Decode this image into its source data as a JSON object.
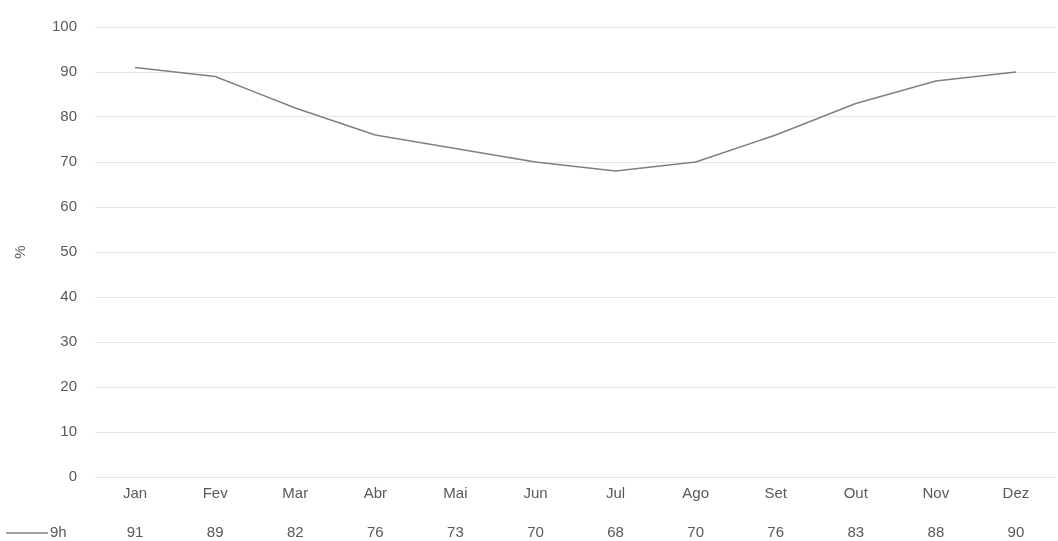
{
  "chart_data": {
    "type": "line",
    "ylabel": "%",
    "categories": [
      "Jan",
      "Fev",
      "Mar",
      "Abr",
      "Mai",
      "Jun",
      "Jul",
      "Ago",
      "Set",
      "Out",
      "Nov",
      "Dez"
    ],
    "series": [
      {
        "name": "9h",
        "color": "#808080",
        "values": [
          91,
          89,
          82,
          76,
          73,
          70,
          68,
          70,
          76,
          83,
          88,
          90
        ]
      }
    ],
    "ylim": [
      0,
      100
    ],
    "yticks": [
      0,
      10,
      20,
      30,
      40,
      50,
      60,
      70,
      80,
      90,
      100
    ],
    "grid": "y",
    "legend": "bottom left",
    "data_labels": true,
    "marker": "none",
    "line_style": "solid"
  }
}
